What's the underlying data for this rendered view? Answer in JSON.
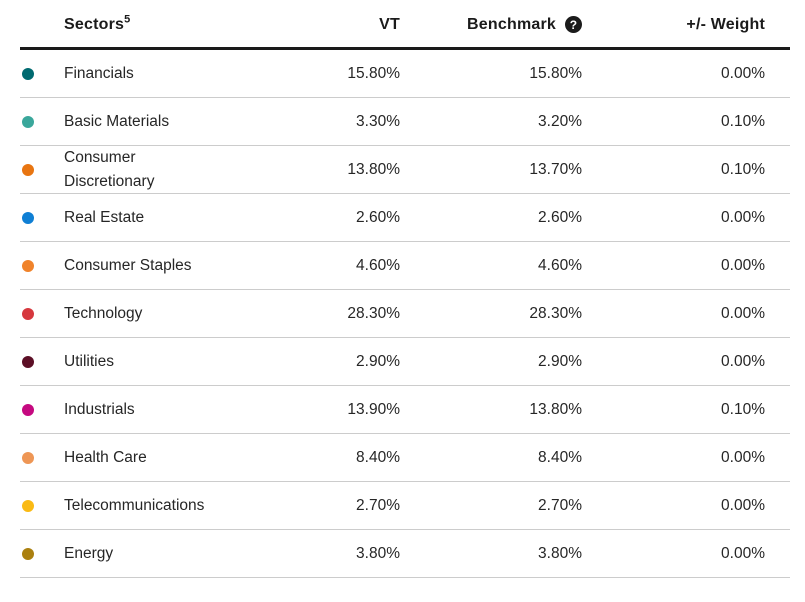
{
  "header": {
    "sectors_label": "Sectors",
    "sectors_footnote": "5",
    "vt_label": "VT",
    "benchmark_label": "Benchmark",
    "help_icon_glyph": "?",
    "weight_label": "+/- Weight"
  },
  "chart_data": {
    "type": "table",
    "columns": [
      "Sectors",
      "VT",
      "Benchmark",
      "+/- Weight"
    ],
    "rows": [
      {
        "sector": "Financials",
        "dot_color": "#006A70",
        "vt": "15.80%",
        "benchmark": "15.80%",
        "weight": "0.00%"
      },
      {
        "sector": "Basic Materials",
        "dot_color": "#3AA79B",
        "vt": "3.30%",
        "benchmark": "3.20%",
        "weight": "0.10%"
      },
      {
        "sector": "Consumer Discretionary",
        "dot_color": "#E87511",
        "vt": "13.80%",
        "benchmark": "13.70%",
        "weight": "0.10%"
      },
      {
        "sector": "Real Estate",
        "dot_color": "#0F7FD4",
        "vt": "2.60%",
        "benchmark": "2.60%",
        "weight": "0.00%"
      },
      {
        "sector": "Consumer Staples",
        "dot_color": "#F0832B",
        "vt": "4.60%",
        "benchmark": "4.60%",
        "weight": "0.00%"
      },
      {
        "sector": "Technology",
        "dot_color": "#D6383E",
        "vt": "28.30%",
        "benchmark": "28.30%",
        "weight": "0.00%"
      },
      {
        "sector": "Utilities",
        "dot_color": "#5C0F26",
        "vt": "2.90%",
        "benchmark": "2.90%",
        "weight": "0.00%"
      },
      {
        "sector": "Industrials",
        "dot_color": "#C50980",
        "vt": "13.90%",
        "benchmark": "13.80%",
        "weight": "0.10%"
      },
      {
        "sector": "Health Care",
        "dot_color": "#EE9655",
        "vt": "8.40%",
        "benchmark": "8.40%",
        "weight": "0.00%"
      },
      {
        "sector": "Telecommunications",
        "dot_color": "#FABA14",
        "vt": "2.70%",
        "benchmark": "2.70%",
        "weight": "0.00%"
      },
      {
        "sector": "Energy",
        "dot_color": "#AB800F",
        "vt": "3.80%",
        "benchmark": "3.80%",
        "weight": "0.00%"
      }
    ]
  },
  "colors": {
    "header_text": "#1B1B1B",
    "body_text": "#262626",
    "separator": "#CCCCCC",
    "header_border": "#1A1A1A"
  }
}
